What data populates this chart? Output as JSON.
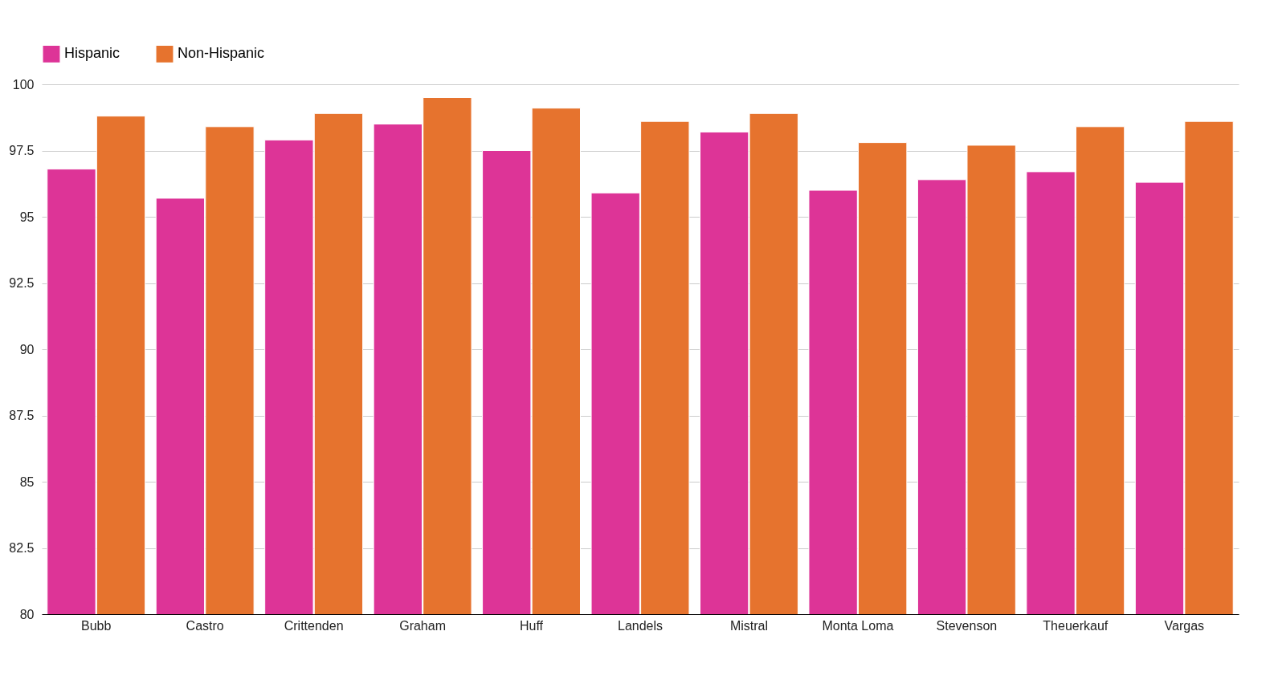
{
  "chart_data": {
    "type": "bar",
    "categories": [
      "Bubb",
      "Castro",
      "Crittenden",
      "Graham",
      "Huff",
      "Landels",
      "Mistral",
      "Monta Loma",
      "Stevenson",
      "Theuerkauf",
      "Vargas"
    ],
    "series": [
      {
        "name": "Hispanic",
        "color": "#dd3497",
        "values": [
          96.8,
          95.7,
          97.9,
          98.5,
          97.5,
          95.9,
          98.2,
          96.0,
          96.4,
          96.7,
          96.3
        ]
      },
      {
        "name": "Non-Hispanic",
        "color": "#e6732e",
        "values": [
          98.8,
          98.4,
          98.9,
          99.5,
          99.1,
          98.6,
          98.9,
          97.8,
          97.7,
          98.4,
          98.6
        ]
      }
    ],
    "ylim": [
      80,
      100
    ],
    "yticks": [
      80,
      82.5,
      85,
      87.5,
      90,
      92.5,
      95,
      97.5,
      100
    ],
    "grid": "y",
    "legend": "top left"
  }
}
